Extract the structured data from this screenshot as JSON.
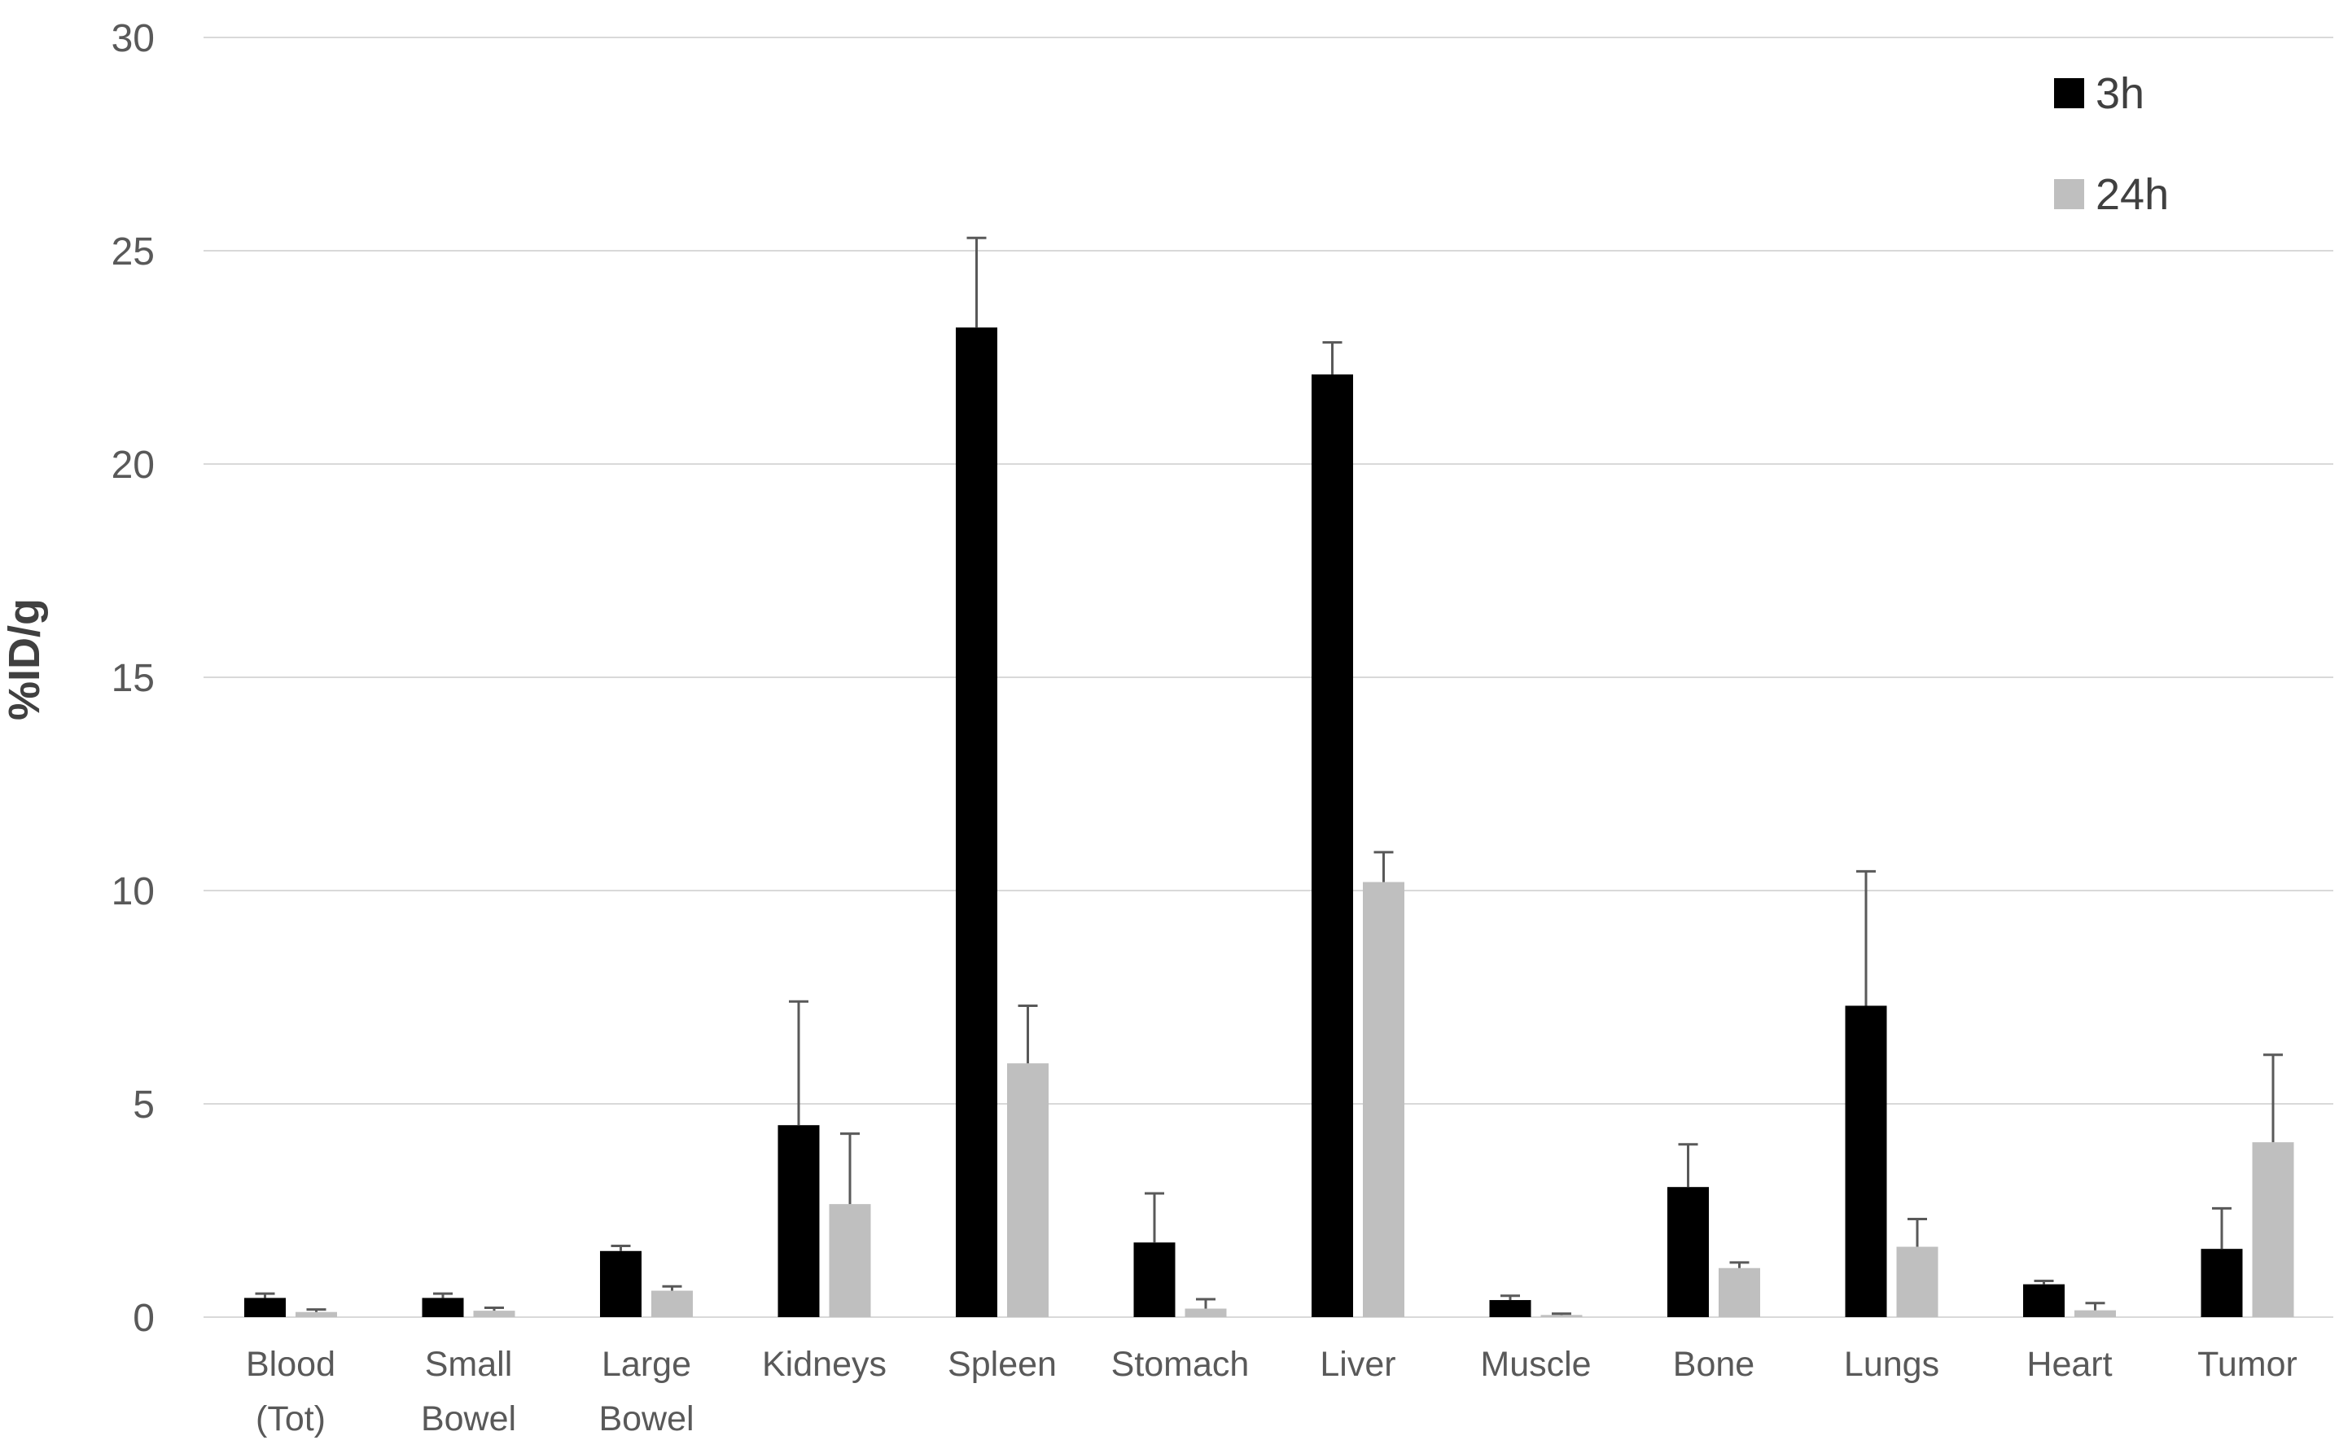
{
  "page": {
    "background": "#ffffff"
  },
  "chart_data": {
    "type": "bar",
    "title": "",
    "subtitle": "",
    "ylabel": "%ID/g",
    "xlabel": "",
    "ylim": [
      0,
      30
    ],
    "yticks": [
      0,
      5,
      10,
      15,
      20,
      25,
      30
    ],
    "ytick_labels": [
      "0",
      "5",
      "10",
      "15",
      "20",
      "25",
      "30"
    ],
    "grid": true,
    "legend_position": "top-right",
    "categories": [
      "Blood (Tot)",
      "Small Bowel",
      "Large Bowel",
      "Kidneys",
      "Spleen",
      "Stomach",
      "Liver",
      "Muscle",
      "Bone",
      "Lungs",
      "Heart",
      "Tumor"
    ],
    "category_label_lines": [
      [
        "Blood",
        "(Tot)"
      ],
      [
        "Small",
        "Bowel"
      ],
      [
        "Large",
        "Bowel"
      ],
      [
        "Kidneys"
      ],
      [
        "Spleen"
      ],
      [
        "Stomach"
      ],
      [
        "Liver"
      ],
      [
        "Muscle"
      ],
      [
        "Bone"
      ],
      [
        "Lungs"
      ],
      [
        "Heart"
      ],
      [
        "Tumor"
      ]
    ],
    "series": [
      {
        "name": "3h",
        "color": "#000000",
        "values": [
          0.45,
          0.45,
          1.55,
          4.5,
          23.2,
          1.75,
          22.1,
          0.4,
          3.05,
          7.3,
          0.77,
          1.6
        ],
        "errors": [
          0.1,
          0.1,
          0.12,
          2.9,
          2.1,
          1.15,
          0.75,
          0.1,
          1.0,
          3.15,
          0.08,
          0.95
        ]
      },
      {
        "name": "24h",
        "color": "#bfbfbf",
        "values": [
          0.12,
          0.15,
          0.62,
          2.65,
          5.95,
          0.2,
          10.2,
          0.05,
          1.15,
          1.65,
          0.16,
          4.1
        ],
        "errors": [
          0.06,
          0.07,
          0.1,
          1.65,
          1.35,
          0.22,
          0.7,
          0.03,
          0.13,
          0.65,
          0.17,
          2.05
        ]
      }
    ],
    "error_bar_color": "#595959",
    "gridline_color": "#d9d9d9",
    "axis_text_color": "#595959",
    "legend_text_color": "#404040"
  }
}
